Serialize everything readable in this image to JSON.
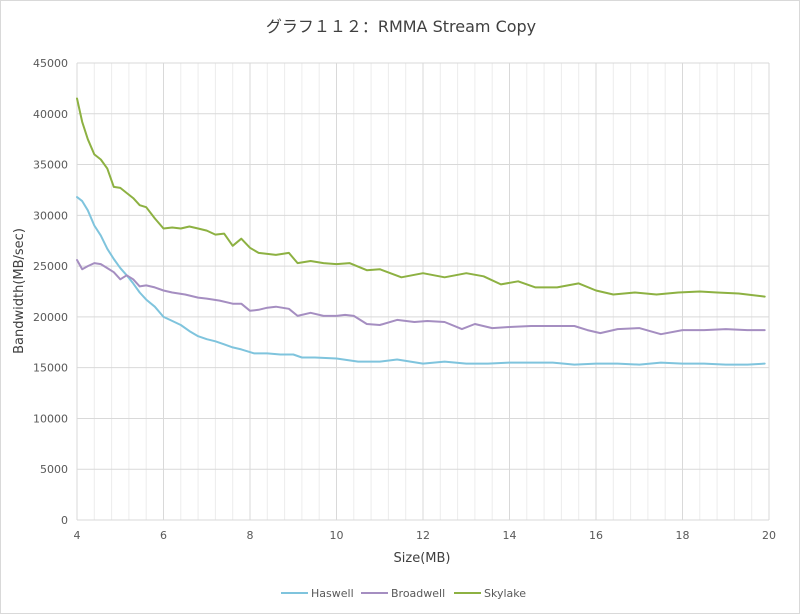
{
  "chart_data": {
    "type": "line",
    "title": "グラフ１１２：RMMA Stream Copy",
    "xlabel": "Size(MB)",
    "ylabel": "Bandwidth(MB/sec)",
    "xlim": [
      4,
      20
    ],
    "ylim": [
      0,
      45000
    ],
    "xticks": [
      4,
      6,
      8,
      10,
      12,
      14,
      16,
      18,
      20
    ],
    "yticks": [
      0,
      5000,
      10000,
      15000,
      20000,
      25000,
      30000,
      35000,
      40000,
      45000
    ],
    "grid": true,
    "legend_position": "bottom",
    "series": [
      {
        "name": "Haswell",
        "color": "#7fc4dd",
        "x": [
          4.0,
          4.12,
          4.25,
          4.4,
          4.55,
          4.7,
          4.85,
          5.0,
          5.15,
          5.3,
          5.45,
          5.6,
          5.8,
          6.0,
          6.15,
          6.4,
          6.6,
          6.8,
          7.0,
          7.2,
          7.4,
          7.6,
          7.8,
          8.1,
          8.4,
          8.7,
          9.0,
          9.2,
          9.5,
          10.0,
          10.5,
          11.0,
          11.4,
          12.0,
          12.5,
          13.0,
          13.5,
          14.0,
          15.0,
          15.5,
          16.0,
          16.5,
          17.0,
          17.5,
          18.0,
          18.5,
          19.0,
          19.5,
          19.9
        ],
        "y": [
          31800,
          31400,
          30500,
          29000,
          28000,
          26700,
          25700,
          24800,
          24100,
          23300,
          22400,
          21700,
          21000,
          20000,
          19700,
          19200,
          18600,
          18100,
          17800,
          17600,
          17300,
          17000,
          16800,
          16400,
          16400,
          16300,
          16300,
          16000,
          16000,
          15900,
          15600,
          15600,
          15800,
          15400,
          15600,
          15400,
          15400,
          15500,
          15500,
          15300,
          15400,
          15400,
          15300,
          15500,
          15400,
          15400,
          15300,
          15300,
          15400
        ]
      },
      {
        "name": "Broadwell",
        "color": "#a58ec1",
        "x": [
          4.0,
          4.12,
          4.25,
          4.4,
          4.55,
          4.7,
          4.85,
          5.0,
          5.15,
          5.3,
          5.45,
          5.6,
          5.8,
          6.0,
          6.2,
          6.5,
          6.8,
          7.0,
          7.3,
          7.6,
          7.8,
          8.0,
          8.2,
          8.4,
          8.6,
          8.9,
          9.1,
          9.4,
          9.7,
          10.0,
          10.2,
          10.4,
          10.7,
          11.0,
          11.4,
          11.8,
          12.1,
          12.5,
          12.9,
          13.2,
          13.6,
          14.0,
          14.5,
          15.0,
          15.5,
          15.8,
          16.1,
          16.5,
          17.0,
          17.5,
          18.0,
          18.5,
          19.0,
          19.5,
          19.9
        ],
        "y": [
          25600,
          24700,
          25000,
          25300,
          25200,
          24800,
          24400,
          23700,
          24100,
          23700,
          23000,
          23100,
          22900,
          22600,
          22400,
          22200,
          21900,
          21800,
          21600,
          21300,
          21300,
          20600,
          20700,
          20900,
          21000,
          20800,
          20100,
          20400,
          20100,
          20100,
          20200,
          20100,
          19300,
          19200,
          19700,
          19500,
          19600,
          19500,
          18800,
          19300,
          18900,
          19000,
          19100,
          19100,
          19100,
          18700,
          18400,
          18800,
          18900,
          18300,
          18700,
          18700,
          18800,
          18700,
          18700
        ]
      },
      {
        "name": "Skylake",
        "color": "#8db142",
        "x": [
          4.0,
          4.12,
          4.25,
          4.4,
          4.55,
          4.7,
          4.85,
          5.0,
          5.15,
          5.3,
          5.45,
          5.6,
          5.8,
          6.0,
          6.2,
          6.4,
          6.6,
          6.8,
          7.0,
          7.2,
          7.4,
          7.6,
          7.8,
          8.0,
          8.2,
          8.4,
          8.6,
          8.9,
          9.1,
          9.4,
          9.7,
          10.0,
          10.3,
          10.7,
          11.0,
          11.5,
          12.0,
          12.5,
          13.0,
          13.4,
          13.8,
          14.2,
          14.6,
          15.1,
          15.6,
          16.0,
          16.4,
          16.9,
          17.4,
          17.9,
          18.4,
          18.8,
          19.3,
          19.9
        ],
        "y": [
          41500,
          39200,
          37500,
          36000,
          35500,
          34600,
          32800,
          32700,
          32200,
          31700,
          31000,
          30800,
          29700,
          28700,
          28800,
          28700,
          28900,
          28700,
          28500,
          28100,
          28200,
          27000,
          27700,
          26800,
          26300,
          26200,
          26100,
          26300,
          25300,
          25500,
          25300,
          25200,
          25300,
          24600,
          24700,
          23900,
          24300,
          23900,
          24300,
          24000,
          23200,
          23500,
          22900,
          22900,
          23300,
          22600,
          22200,
          22400,
          22200,
          22400,
          22500,
          22400,
          22300,
          22000
        ]
      }
    ]
  }
}
